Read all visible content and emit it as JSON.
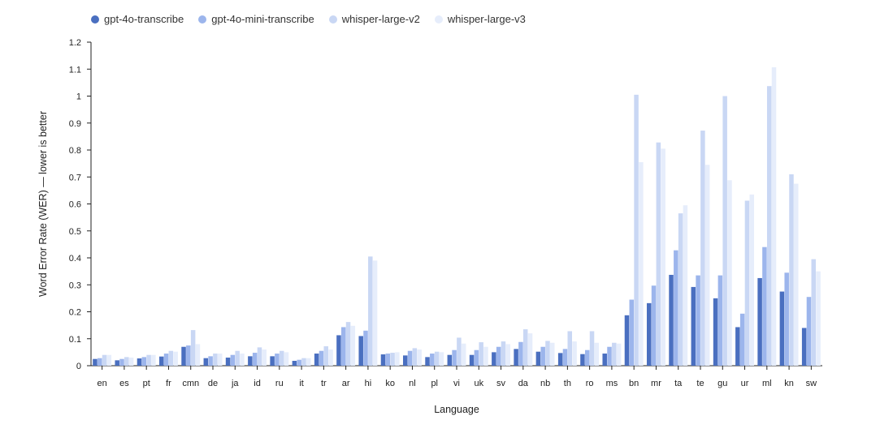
{
  "chart_data": {
    "type": "bar",
    "title": "",
    "xlabel": "Language",
    "ylabel": "Word Error Rate (WER) — lower is better",
    "ylim": [
      0,
      1.2
    ],
    "yticks": [
      0,
      0.1,
      0.2,
      0.3,
      0.4,
      0.5,
      0.6,
      0.7,
      0.8,
      0.9,
      1,
      1.1,
      1.2
    ],
    "ytick_labels": [
      "0",
      "0.1",
      "0.2",
      "0.3",
      "0.4",
      "0.5",
      "0.6",
      "0.7",
      "0.8",
      "0.9",
      "1",
      "1.1",
      "1.2"
    ],
    "grid": false,
    "legend_position": "top-left",
    "categories": [
      "en",
      "es",
      "pt",
      "fr",
      "cmn",
      "de",
      "ja",
      "id",
      "ru",
      "it",
      "tr",
      "ar",
      "hi",
      "ko",
      "nl",
      "pl",
      "vi",
      "uk",
      "sv",
      "da",
      "nb",
      "th",
      "ro",
      "ms",
      "bn",
      "mr",
      "ta",
      "te",
      "gu",
      "ur",
      "ml",
      "kn",
      "sw"
    ],
    "series": [
      {
        "name": "gpt-4o-transcribe",
        "color": "#4a6fc0",
        "values": [
          0.025,
          0.02,
          0.027,
          0.034,
          0.07,
          0.028,
          0.03,
          0.035,
          0.035,
          0.018,
          0.045,
          0.113,
          0.11,
          0.042,
          0.038,
          0.032,
          0.04,
          0.04,
          0.05,
          0.062,
          0.052,
          0.047,
          0.043,
          0.045,
          0.187,
          0.232,
          0.337,
          0.292,
          0.25,
          0.143,
          0.325,
          0.275,
          0.14
        ]
      },
      {
        "name": "gpt-4o-mini-transcribe",
        "color": "#9cb5ec",
        "values": [
          0.028,
          0.025,
          0.032,
          0.045,
          0.075,
          0.035,
          0.04,
          0.048,
          0.045,
          0.022,
          0.055,
          0.143,
          0.13,
          0.045,
          0.055,
          0.045,
          0.058,
          0.058,
          0.07,
          0.088,
          0.07,
          0.062,
          0.058,
          0.07,
          0.245,
          0.297,
          0.428,
          0.335,
          0.335,
          0.193,
          0.44,
          0.345,
          0.255
        ]
      },
      {
        "name": "whisper-large-v2",
        "color": "#c9d7f4",
        "values": [
          0.04,
          0.032,
          0.04,
          0.055,
          0.132,
          0.045,
          0.055,
          0.068,
          0.055,
          0.028,
          0.072,
          0.162,
          0.405,
          0.048,
          0.065,
          0.052,
          0.104,
          0.087,
          0.09,
          0.135,
          0.092,
          0.128,
          0.128,
          0.085,
          1.005,
          0.828,
          0.565,
          0.872,
          1.0,
          0.612,
          1.037,
          0.71,
          0.395
        ]
      },
      {
        "name": "whisper-large-v3",
        "color": "#e6edfb",
        "values": [
          0.04,
          0.03,
          0.04,
          0.052,
          0.08,
          0.045,
          0.045,
          0.06,
          0.05,
          0.028,
          0.06,
          0.148,
          0.39,
          0.05,
          0.06,
          0.05,
          0.082,
          0.07,
          0.08,
          0.12,
          0.085,
          0.09,
          0.085,
          0.082,
          0.755,
          0.805,
          0.595,
          0.745,
          0.688,
          0.635,
          1.107,
          0.675,
          0.35
        ]
      }
    ]
  }
}
